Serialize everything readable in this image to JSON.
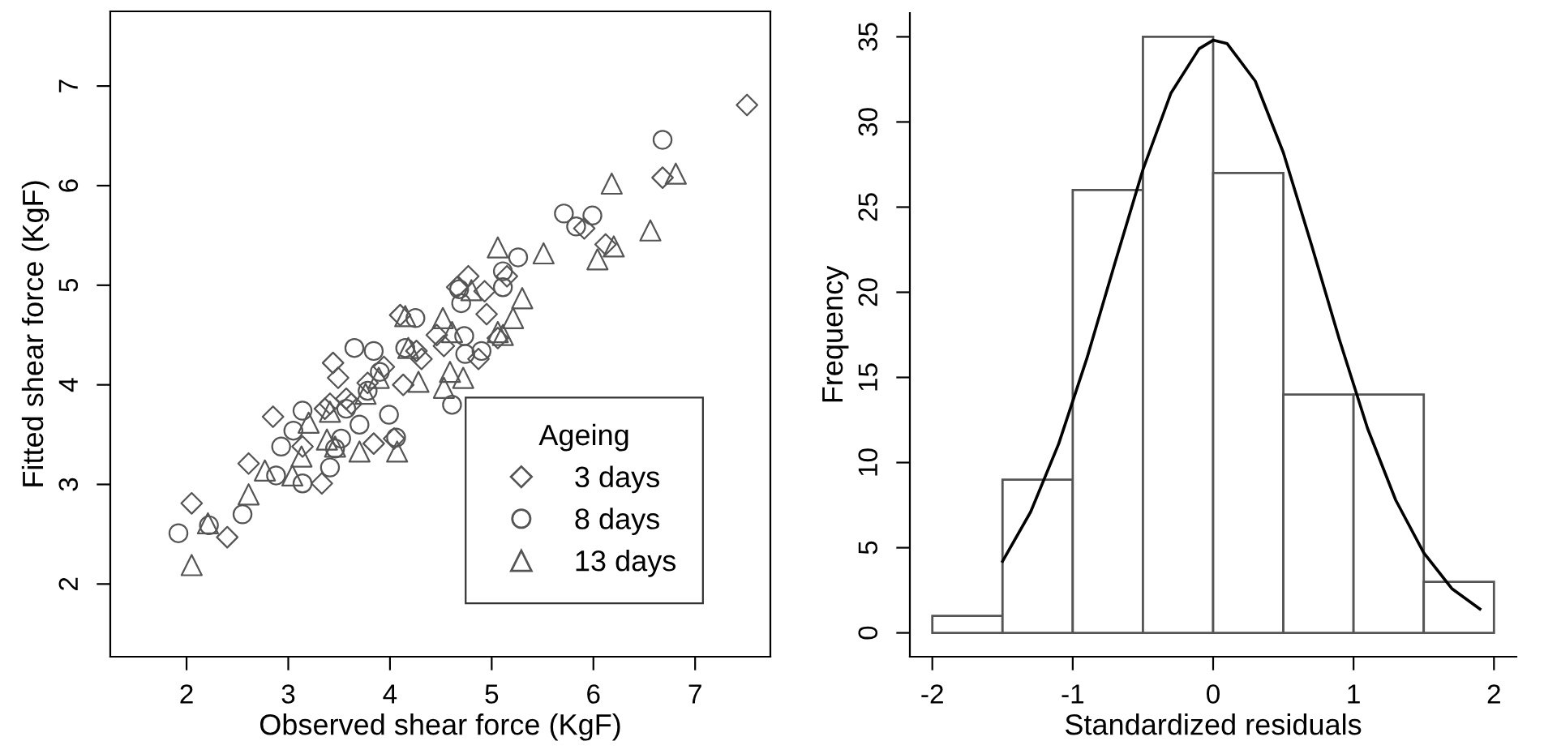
{
  "chart_data": [
    {
      "type": "scatter",
      "xlabel": "Observed shear force (KgF)",
      "ylabel": "Fitted shear force (KgF)",
      "legend_title": "Ageing",
      "legend": "bottom right",
      "grid": false,
      "xlim": [
        1.25,
        7.74
      ],
      "ylim": [
        1.27,
        7.75
      ],
      "xticks": [
        2,
        3,
        4,
        5,
        6,
        7
      ],
      "yticks": [
        2,
        3,
        4,
        5,
        6,
        7
      ],
      "series": [
        {
          "name": "3 days",
          "marker": "diamond",
          "color": "#555555",
          "x": [
            7.51,
            6.68,
            5.91,
            6.12,
            2.05,
            2.4,
            2.61,
            2.85,
            3.33,
            3.44,
            3.49,
            3.41,
            3.84,
            4.04,
            4.1,
            4.13,
            4.31,
            4.46,
            4.53,
            4.66,
            4.77,
            4.87,
            4.93,
            4.95,
            5.15,
            5.06,
            3.94,
            3.62,
            3.14,
            3.36,
            3.57,
            3.78,
            4.26
          ],
          "values": [
            6.81,
            6.08,
            5.57,
            5.41,
            2.81,
            2.47,
            3.21,
            3.68,
            3.01,
            4.22,
            4.07,
            3.81,
            3.41,
            3.46,
            4.7,
            4.0,
            4.26,
            4.5,
            4.39,
            4.98,
            5.09,
            4.26,
            4.94,
            4.71,
            5.09,
            4.47,
            4.18,
            3.81,
            3.38,
            3.76,
            3.86,
            4.02,
            4.34
          ]
        },
        {
          "name": "8 days",
          "marker": "circle",
          "color": "#555555",
          "x": [
            1.92,
            2.22,
            2.55,
            6.68,
            5.71,
            5.83,
            5.99,
            4.61,
            3.65,
            3.84,
            4.06,
            3.99,
            3.14,
            2.88,
            2.93,
            3.05,
            3.14,
            3.41,
            3.46,
            3.57,
            3.7,
            3.78,
            3.9,
            4.25,
            4.15,
            4.73,
            4.74,
            4.9,
            4.68,
            4.7,
            5.11,
            5.26,
            5.11,
            3.52
          ],
          "values": [
            2.51,
            2.59,
            2.7,
            6.46,
            5.72,
            5.59,
            5.7,
            3.8,
            4.37,
            4.34,
            3.47,
            3.7,
            3.01,
            3.09,
            3.38,
            3.54,
            3.74,
            3.17,
            3.36,
            3.76,
            3.6,
            3.94,
            4.13,
            4.67,
            4.37,
            4.49,
            4.31,
            4.34,
            4.96,
            4.82,
            5.14,
            5.28,
            4.98,
            3.46
          ]
        },
        {
          "name": "13 days",
          "marker": "triangle",
          "color": "#555555",
          "x": [
            2.05,
            2.21,
            2.61,
            2.77,
            3.04,
            3.13,
            3.2,
            3.38,
            3.41,
            3.46,
            3.7,
            3.76,
            4.07,
            4.18,
            4.28,
            4.53,
            4.52,
            4.61,
            4.59,
            4.72,
            5.06,
            5.06,
            5.11,
            5.21,
            5.3,
            5.51,
            6.04,
            6.2,
            6.18,
            6.56,
            6.81,
            4.15,
            4.8,
            3.89
          ],
          "values": [
            2.19,
            2.61,
            2.9,
            3.14,
            3.09,
            3.28,
            3.62,
            3.45,
            3.73,
            3.38,
            3.33,
            3.91,
            3.33,
            4.37,
            4.03,
            3.97,
            4.67,
            4.53,
            4.13,
            4.07,
            5.38,
            4.53,
            4.5,
            4.67,
            4.87,
            5.32,
            5.26,
            5.39,
            6.02,
            5.55,
            6.12,
            4.69,
            4.95,
            4.07
          ]
        }
      ]
    },
    {
      "type": "histogram",
      "xlabel": "Standardized residuals",
      "ylabel": "Frequency",
      "grid": false,
      "bins": [
        -2,
        -1.5,
        -1,
        -0.5,
        0,
        0.5,
        1,
        1.5,
        2
      ],
      "values": [
        1,
        9,
        26,
        35,
        27,
        14,
        14,
        3
      ],
      "color": "#555555",
      "xlim": [
        -2.16,
        2.16
      ],
      "ylim": [
        -1.4,
        36.4
      ],
      "xticks": [
        -2,
        -1,
        0,
        1,
        2
      ],
      "yticks": [
        0,
        5,
        10,
        15,
        20,
        25,
        30,
        35
      ],
      "series": [
        {
          "type": "line",
          "color": "#000000",
          "x": [
            -1.5,
            -1.3,
            -1.1,
            -0.9,
            -0.7,
            -0.5,
            -0.3,
            -0.1,
            0,
            0.1,
            0.3,
            0.5,
            0.7,
            0.9,
            1.1,
            1.3,
            1.5,
            1.7,
            1.9
          ],
          "values": [
            4.2,
            7.1,
            11.1,
            16.1,
            21.7,
            27.2,
            31.7,
            34.3,
            34.8,
            34.6,
            32.4,
            28.2,
            22.8,
            17.2,
            12.0,
            7.8,
            4.7,
            2.6,
            1.4
          ]
        }
      ]
    }
  ]
}
